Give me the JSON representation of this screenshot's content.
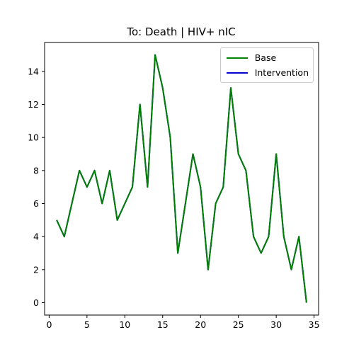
{
  "chart_data": {
    "type": "line",
    "title": "To: Death | HIV+ nIC",
    "xlabel": "",
    "ylabel": "",
    "xlim": [
      -0.6,
      35.6
    ],
    "ylim": [
      -0.75,
      15.75
    ],
    "xticks": [
      0,
      5,
      10,
      15,
      20,
      25,
      30,
      35
    ],
    "yticks": [
      0,
      2,
      4,
      6,
      8,
      10,
      12,
      14
    ],
    "grid": false,
    "legend_position": "top-right",
    "x": [
      1,
      2,
      3,
      4,
      5,
      6,
      7,
      8,
      9,
      10,
      11,
      12,
      13,
      14,
      15,
      16,
      17,
      18,
      19,
      20,
      21,
      22,
      23,
      24,
      25,
      26,
      27,
      28,
      29,
      30,
      31,
      32,
      33,
      34
    ],
    "series": [
      {
        "name": "Base",
        "color": "#008000",
        "values": [
          5,
          4,
          6,
          8,
          7,
          8,
          6,
          8,
          5,
          6,
          7,
          12,
          7,
          15,
          13,
          10,
          3,
          6,
          9,
          7,
          2,
          6,
          7,
          13,
          9,
          8,
          4,
          3,
          4,
          9,
          4,
          2,
          4,
          0
        ]
      },
      {
        "name": "Intervention",
        "color": "#0000cd",
        "values": [
          5,
          4,
          6,
          8,
          7,
          8,
          6,
          8,
          5,
          6,
          7,
          12,
          7,
          15,
          13,
          10,
          3,
          6,
          9,
          7,
          2,
          6,
          7,
          13,
          9,
          8,
          4,
          3,
          4,
          9,
          4,
          2,
          4,
          0
        ]
      }
    ]
  }
}
